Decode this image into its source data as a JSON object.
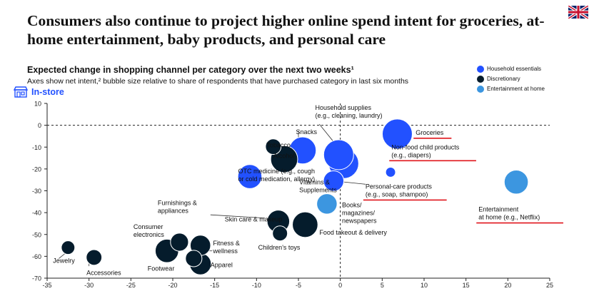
{
  "header": {
    "title": "Consumers also continue to project higher online spend intent for groceries, at-home entertainment, baby products, and personal care",
    "subtitle": "Expected change in shopping channel per category over the next two weeks¹",
    "subtitle2": "Axes show net intent,² bubble size relative to share of respondents that have purchased category in last six months",
    "axis_region_label": "In-store",
    "flag": "uk-flag-icon"
  },
  "legend": [
    {
      "name": "Household essentials",
      "color": "#2251ff"
    },
    {
      "name": "Discretionary",
      "color": "#051c2c"
    },
    {
      "name": "Entertainment at home",
      "color": "#3c96e0"
    }
  ],
  "chart_data": {
    "type": "scatter",
    "xlim": [
      -35,
      25
    ],
    "ylim": [
      -70,
      10
    ],
    "xticks": [
      -35,
      -30,
      -25,
      -20,
      -15,
      -10,
      -5,
      0,
      5,
      10,
      15,
      20,
      25
    ],
    "yticks": [
      10,
      0,
      -10,
      -20,
      -30,
      -40,
      -50,
      -60,
      -70
    ],
    "grid": false,
    "reference_lines": {
      "x": 0,
      "y": 0,
      "style": "dashed"
    },
    "series": [
      {
        "name": "Household essentials",
        "color": "#2251ff",
        "points": [
          {
            "x": 6.8,
            "y": -4,
            "size": 1.0,
            "label": "Groceries"
          },
          {
            "x": 6.0,
            "y": -21.5,
            "size": 0.33,
            "label": "Non-food child products (e.g., diapers)"
          },
          {
            "x": 0.4,
            "y": -17.5,
            "size": 1.0,
            "label": "Personal-care products (e.g., soap, shampoo)"
          },
          {
            "x": -0.2,
            "y": -13.5,
            "size": 1.0,
            "label": "Household supplies (e.g., cleaning, laundry)"
          },
          {
            "x": -4.5,
            "y": -11.5,
            "size": 0.9,
            "label": "Snacks"
          },
          {
            "x": -10.8,
            "y": -23.5,
            "size": 0.8,
            "label": "OTC medicine (e.g., cough or cold medication, allergy)"
          },
          {
            "x": -0.8,
            "y": -25.5,
            "size": 0.68,
            "label": "Vitamins & Supplements"
          }
        ]
      },
      {
        "name": "Discretionary",
        "color": "#051c2c",
        "points": [
          {
            "x": -8.0,
            "y": -9.8,
            "size": 0.52,
            "label": "Tobacco"
          },
          {
            "x": -6.7,
            "y": -15.5,
            "size": 0.9,
            "label": "Alcohol"
          },
          {
            "x": -7.4,
            "y": -44,
            "size": 0.75,
            "label": "Skin care & makeup"
          },
          {
            "x": -7.2,
            "y": -49.5,
            "size": 0.5,
            "label": "Children's toys"
          },
          {
            "x": -4.2,
            "y": -45.5,
            "size": 0.85,
            "label": "Food takeout & delivery"
          },
          {
            "x": -20.7,
            "y": -57.5,
            "size": 0.78,
            "label": "Footwear"
          },
          {
            "x": -19.2,
            "y": -53.5,
            "size": 0.6,
            "label": "Consumer electronics"
          },
          {
            "x": -16.7,
            "y": -55,
            "size": 0.68,
            "label": "Fitness & wellness"
          },
          {
            "x": -17.5,
            "y": -61,
            "size": 0.55,
            "label": "Furnishings & appliances"
          },
          {
            "x": -16.7,
            "y": -63.5,
            "size": 0.72,
            "label": "Apparel"
          },
          {
            "x": -32.5,
            "y": -56,
            "size": 0.45,
            "label": "Jewelry"
          },
          {
            "x": -29.4,
            "y": -60.5,
            "size": 0.52,
            "label": "Accessories"
          }
        ]
      },
      {
        "name": "Entertainment at home",
        "color": "#3c96e0",
        "points": [
          {
            "x": 21.0,
            "y": -26,
            "size": 0.8,
            "label": "Entertainment at home (e.g., Netflix)"
          },
          {
            "x": -1.6,
            "y": -36,
            "size": 0.68,
            "label": "Books/ magazines/ newspapers"
          }
        ]
      }
    ],
    "annotations": [
      {
        "lines": [
          "Groceries"
        ],
        "anchor_x": 9.0,
        "anchor_y": -4.3,
        "underline": true
      },
      {
        "lines": [
          "Non-food child products",
          "(e.g., diapers)"
        ],
        "anchor_x": 6.1,
        "anchor_y": -11.0,
        "underline": true
      },
      {
        "lines": [
          "Personal-care products",
          "(e.g., soap, shampoo)"
        ],
        "anchor_x": 3.0,
        "anchor_y": -29.0,
        "underline": true
      },
      {
        "lines": [
          "Entertainment",
          "at home (e.g., Netflix)"
        ],
        "anchor_x": 16.5,
        "anchor_y": -39.5,
        "underline": true
      },
      {
        "lines": [
          "Household supplies",
          "(e.g., cleaning, laundry)"
        ],
        "anchor_x": -3.0,
        "anchor_y": 7.0,
        "underline": false
      },
      {
        "lines": [
          "Snacks"
        ],
        "anchor_x": -5.3,
        "anchor_y": -4.0,
        "underline": false
      },
      {
        "lines": [
          "Tobacco"
        ],
        "anchor_x": -8.8,
        "anchor_y": -10.0,
        "underline": false
      },
      {
        "lines": [
          "Alcohol"
        ],
        "anchor_x": -8.0,
        "anchor_y": -15.0,
        "underline": false
      },
      {
        "lines": [
          "OTC medicine (e.g., cough",
          "or cold medication, allergy)"
        ],
        "anchor_x": -12.2,
        "anchor_y": -22.0,
        "underline": false
      },
      {
        "lines": [
          "Vitamins &",
          "Supplements"
        ],
        "anchor_x": -4.9,
        "anchor_y": -27.0,
        "underline": false
      },
      {
        "lines": [
          "Books/",
          "magazines/",
          "newspapers"
        ],
        "anchor_x": 0.2,
        "anchor_y": -37.5,
        "underline": false
      },
      {
        "lines": [
          "Furnishings &",
          "appliances"
        ],
        "anchor_x": -21.8,
        "anchor_y": -36.5,
        "underline": false
      },
      {
        "lines": [
          "Skin care & makeup"
        ],
        "anchor_x": -13.8,
        "anchor_y": -44.0,
        "underline": false
      },
      {
        "lines": [
          "Consumer",
          "electronics"
        ],
        "anchor_x": -24.7,
        "anchor_y": -47.5,
        "underline": false
      },
      {
        "lines": [
          "Food takeout & delivery"
        ],
        "anchor_x": -2.5,
        "anchor_y": -50.0,
        "underline": false
      },
      {
        "lines": [
          "Children's toys"
        ],
        "anchor_x": -9.8,
        "anchor_y": -57.0,
        "underline": false
      },
      {
        "lines": [
          "Fitness &",
          "wellness"
        ],
        "anchor_x": -15.2,
        "anchor_y": -55.0,
        "underline": false
      },
      {
        "lines": [
          "Apparel"
        ],
        "anchor_x": -15.5,
        "anchor_y": -65.0,
        "underline": false
      },
      {
        "lines": [
          "Footwear"
        ],
        "anchor_x": -23.0,
        "anchor_y": -66.5,
        "underline": false
      },
      {
        "lines": [
          "Jewelry"
        ],
        "anchor_x": -34.3,
        "anchor_y": -63.0,
        "underline": false
      },
      {
        "lines": [
          "Accessories"
        ],
        "anchor_x": -30.3,
        "anchor_y": -68.5,
        "underline": false
      }
    ],
    "leaders": [
      {
        "x1": -2.5,
        "y1": 0.5,
        "x2": -0.5,
        "y2": -9.0
      },
      {
        "x1": -5.0,
        "y1": -2.5,
        "x2": -5.0,
        "y2": -7.0
      },
      {
        "x1": -7.3,
        "y1": -9.8,
        "x2": -7.5,
        "y2": -9.8
      },
      {
        "x1": -15.5,
        "y1": -41.0,
        "x2": -9.0,
        "y2": -42.5
      },
      {
        "x1": -2.0,
        "y1": -25.0,
        "x2": 3.0,
        "y2": -27.0
      },
      {
        "x1": -15.3,
        "y1": -57.5,
        "x2": -16.0,
        "y2": -57.5
      },
      {
        "x1": -15.5,
        "y1": -63.5,
        "x2": -16.0,
        "y2": -63.5
      },
      {
        "x1": -18.8,
        "y1": -56.0,
        "x2": -18.8,
        "y2": -56.5
      },
      {
        "x1": -30.0,
        "y1": -61.5,
        "x2": -30.0,
        "y2": -64.5
      },
      {
        "x1": -32.8,
        "y1": -58.5,
        "x2": -33.6,
        "y2": -61.0
      }
    ]
  }
}
